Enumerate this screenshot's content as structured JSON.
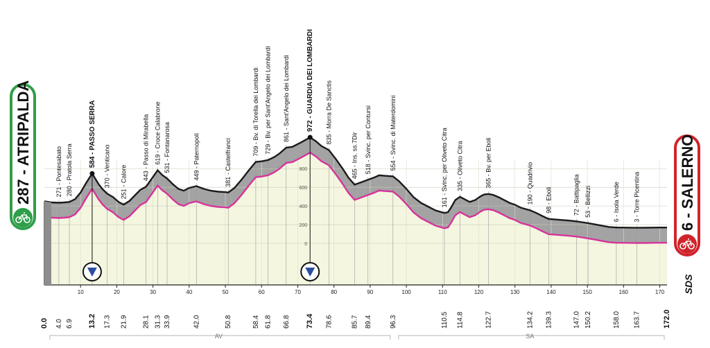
{
  "start": {
    "altitude": "287",
    "name": "ATRIPALDA"
  },
  "finish": {
    "altitude": "6",
    "name": "SALERNO"
  },
  "brand": "SDS",
  "provinces": [
    {
      "code": "AV",
      "from_km": 0,
      "to_km": 96.3
    },
    {
      "code": "SA",
      "from_km": 96.3,
      "to_km": 172.0
    }
  ],
  "colors": {
    "profile_fill": "#f4f6df",
    "terrain": "#a3a3a3",
    "road": "#d6339b",
    "ridge": "#1a1a1a",
    "start_green": "#2f9e49",
    "finish_red": "#d0242b",
    "kom_blue": "#2b4ea2"
  },
  "chart_data": {
    "type": "area",
    "title": "",
    "xlabel": "",
    "ylabel": "",
    "xlim": [
      0,
      172
    ],
    "ylim": [
      0,
      1000
    ],
    "x_ticks": [
      10,
      20,
      30,
      40,
      50,
      60,
      70,
      80,
      90,
      100,
      110,
      120,
      130,
      140,
      150,
      160,
      170
    ],
    "y_ticks": [
      0,
      200,
      400,
      600,
      800
    ],
    "km_labels": [
      {
        "km": 0.0,
        "text": "0.0",
        "bold": true
      },
      {
        "km": 4.0,
        "text": "4.0"
      },
      {
        "km": 6.9,
        "text": "6.9"
      },
      {
        "km": 13.2,
        "text": "13.2",
        "bold": true
      },
      {
        "km": 17.3,
        "text": "17.3"
      },
      {
        "km": 21.9,
        "text": "21.9"
      },
      {
        "km": 28.1,
        "text": "28.1"
      },
      {
        "km": 31.3,
        "text": "31.3"
      },
      {
        "km": 33.9,
        "text": "33.9"
      },
      {
        "km": 42.0,
        "text": "42.0"
      },
      {
        "km": 50.8,
        "text": "50.8"
      },
      {
        "km": 58.4,
        "text": "58.4"
      },
      {
        "km": 61.8,
        "text": "61.8"
      },
      {
        "km": 66.8,
        "text": "66.8"
      },
      {
        "km": 73.4,
        "text": "73.4",
        "bold": true
      },
      {
        "km": 78.6,
        "text": "78.6"
      },
      {
        "km": 85.7,
        "text": "85.7"
      },
      {
        "km": 89.4,
        "text": "89.4"
      },
      {
        "km": 96.3,
        "text": "96.3"
      },
      {
        "km": 110.5,
        "text": "110.5"
      },
      {
        "km": 114.8,
        "text": "114.8"
      },
      {
        "km": 122.7,
        "text": "122.7"
      },
      {
        "km": 134.2,
        "text": "134.2"
      },
      {
        "km": 139.3,
        "text": "139.3"
      },
      {
        "km": 147.0,
        "text": "147.0"
      },
      {
        "km": 150.2,
        "text": "150.2"
      },
      {
        "km": 158.0,
        "text": "158.0"
      },
      {
        "km": 163.7,
        "text": "163.7"
      },
      {
        "km": 172.0,
        "text": "172.0",
        "bold": true
      }
    ],
    "places": [
      {
        "km": 4.0,
        "alt": 271,
        "text": "271 - Pontesabato"
      },
      {
        "km": 6.9,
        "alt": 280,
        "text": "280 - Pratola Serra"
      },
      {
        "km": 13.2,
        "alt": 584,
        "text": "584 - PASSO SERRA",
        "bold": true
      },
      {
        "km": 17.3,
        "alt": 370,
        "text": "370 - Venticano"
      },
      {
        "km": 21.9,
        "alt": 251,
        "text": "251 - Calore"
      },
      {
        "km": 28.1,
        "alt": 443,
        "text": "443 - Passo di Mirabella"
      },
      {
        "km": 31.3,
        "alt": 619,
        "text": "619 - Croce Calabrone"
      },
      {
        "km": 33.9,
        "alt": 531,
        "text": "531 - Fontanarosa"
      },
      {
        "km": 42.0,
        "alt": 449,
        "text": "449 - Paternopoli"
      },
      {
        "km": 50.8,
        "alt": 381,
        "text": "381 - Castelfranci"
      },
      {
        "km": 58.4,
        "alt": 709,
        "text": "709 - Bv. di Torella dei Lombardi"
      },
      {
        "km": 61.8,
        "alt": 729,
        "text": "729 - Bv. per Sant'Angelo dei Lombardi"
      },
      {
        "km": 66.8,
        "alt": 861,
        "text": "861 - Sant'Angelo dei Lombardi"
      },
      {
        "km": 73.4,
        "alt": 972,
        "text": "972 - GUARDIA DEI LOMBARDI",
        "bold": true
      },
      {
        "km": 78.6,
        "alt": 835,
        "text": "835 - Morra De Sanctis"
      },
      {
        "km": 85.7,
        "alt": 465,
        "text": "465 - Ins. ss.7Dir"
      },
      {
        "km": 89.4,
        "alt": 518,
        "text": "518 - Svinc. per Contursi"
      },
      {
        "km": 96.3,
        "alt": 554,
        "text": "554 - Svinc. di Materdomini"
      },
      {
        "km": 110.5,
        "alt": 161,
        "text": "161 - Svinc. per Oliveto Citra"
      },
      {
        "km": 114.8,
        "alt": 335,
        "text": "335 - Oliveto Citra"
      },
      {
        "km": 122.7,
        "alt": 365,
        "text": "365 - Bv. per Eboli"
      },
      {
        "km": 134.2,
        "alt": 190,
        "text": "190 - Quadrivio"
      },
      {
        "km": 139.3,
        "alt": 98,
        "text": "98 - Eboli"
      },
      {
        "km": 147.0,
        "alt": 72,
        "text": "72 - Battipaglia"
      },
      {
        "km": 150.2,
        "alt": 53,
        "text": "53 - Bellizzi"
      },
      {
        "km": 158.0,
        "alt": 6,
        "text": "6 - Isola Verde"
      },
      {
        "km": 163.7,
        "alt": 3,
        "text": "3 - Torre Picentina"
      }
    ],
    "kom": [
      {
        "km": 13.2,
        "alt": 584
      },
      {
        "km": 73.4,
        "alt": 972
      }
    ],
    "series": [
      {
        "x": [
          0,
          2,
          4,
          5.5,
          6.9,
          8.5,
          10,
          11.5,
          13.2,
          15,
          16,
          17.3,
          19,
          20.5,
          21.9,
          23.5,
          25,
          26.5,
          28.1,
          29.5,
          31.3,
          32.5,
          33.9,
          35.5,
          37,
          38.5,
          40,
          42,
          44,
          46,
          48,
          50,
          50.8,
          52.5,
          54.5,
          56.5,
          58.4,
          60,
          61.8,
          63.5,
          65,
          66.8,
          68.5,
          70,
          71.5,
          73.4,
          75,
          76.5,
          78.6,
          80.5,
          82.5,
          84,
          85.7,
          87.5,
          89.4,
          91,
          92.5,
          94,
          96.3,
          98,
          100,
          102,
          104,
          106,
          108,
          110.5,
          111.5,
          112.5,
          113.5,
          114.8,
          116,
          117.5,
          119,
          120.5,
          121.5,
          122.7,
          124,
          125.5,
          127,
          128.5,
          130,
          131.5,
          134.2,
          136,
          137.5,
          139.3,
          142,
          145,
          147,
          148.5,
          150.2,
          152,
          154,
          156,
          158,
          160,
          163.7,
          166,
          168,
          170,
          172
        ],
        "y": [
          287,
          275,
          271,
          275,
          280,
          310,
          380,
          480,
          584,
          470,
          420,
          370,
          330,
          280,
          251,
          290,
          350,
          410,
          443,
          520,
          619,
          570,
          531,
          470,
          420,
          400,
          430,
          449,
          420,
          400,
          390,
          385,
          381,
          430,
          520,
          620,
          709,
          715,
          729,
          760,
          800,
          861,
          870,
          900,
          930,
          972,
          930,
          880,
          835,
          740,
          630,
          540,
          465,
          490,
          518,
          540,
          565,
          560,
          554,
          500,
          420,
          330,
          270,
          230,
          190,
          161,
          170,
          230,
          300,
          335,
          310,
          280,
          300,
          340,
          360,
          365,
          355,
          330,
          300,
          270,
          250,
          220,
          190,
          160,
          130,
          98,
          90,
          80,
          72,
          63,
          53,
          40,
          25,
          12,
          6,
          5,
          3,
          4,
          5,
          6,
          6
        ]
      }
    ]
  }
}
